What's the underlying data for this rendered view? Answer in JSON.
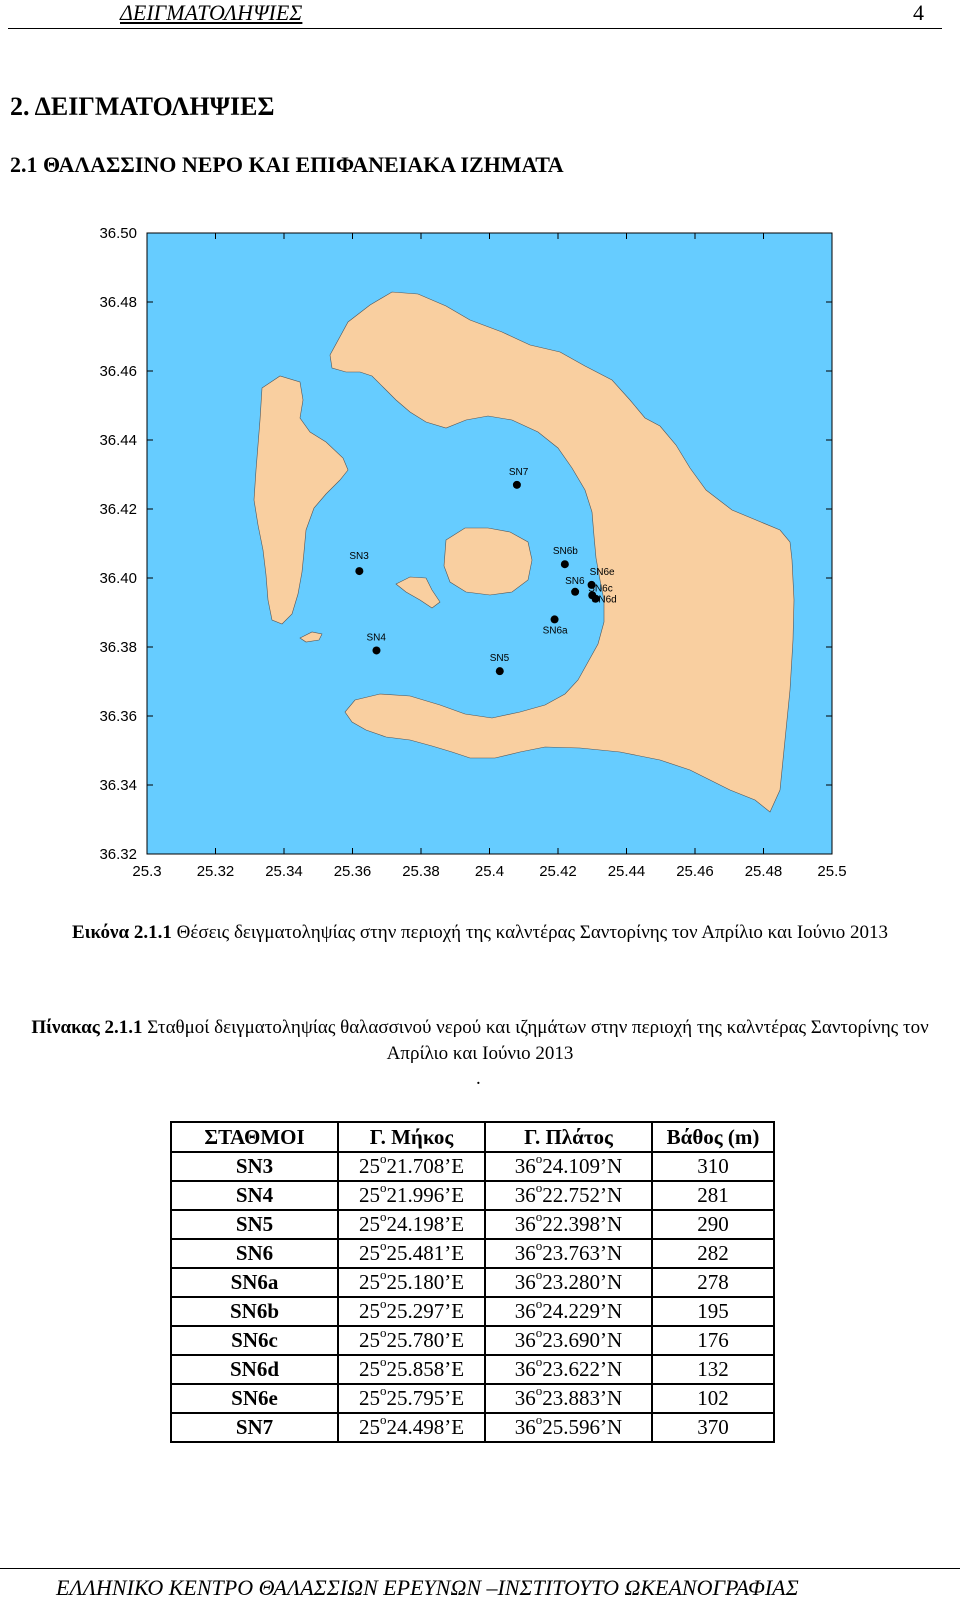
{
  "header": {
    "title": "ΔΕΙΓΜΑΤΟΛΗΨΙΕΣ",
    "page": "4"
  },
  "section_title": "2. ΔΕΙΓΜΑΤΟΛΗΨΙΕΣ",
  "subsection_title": "2.1 ΘΑΛΑΣΣΙΝΟ ΝΕΡΟ ΚΑΙ ΕΠΙΦΑΝΕΙΑΚΑ ΙΖΗΜΑΤΑ",
  "map": {
    "x_ticks": [
      "25.3",
      "25.32",
      "25.34",
      "25.36",
      "25.38",
      "25.4",
      "25.42",
      "25.44",
      "25.46",
      "25.48",
      "25.5"
    ],
    "y_ticks": [
      "36.50",
      "36.48",
      "36.46",
      "36.44",
      "36.42",
      "36.40",
      "36.38",
      "36.36",
      "36.34",
      "36.32"
    ],
    "xlim": [
      25.3,
      25.5
    ],
    "ylim": [
      36.32,
      36.5
    ],
    "sea_color": "#66ccff",
    "land_color": "#f9cfa0",
    "stations": [
      {
        "name": "SN7",
        "lon": 25.408,
        "lat": 36.427
      },
      {
        "name": "SN3",
        "lon": 25.362,
        "lat": 36.402
      },
      {
        "name": "SN6b",
        "lon": 25.422,
        "lat": 36.404
      },
      {
        "name": "SN6",
        "lon": 25.425,
        "lat": 36.396
      },
      {
        "name": "SN6e",
        "lon": 25.4298,
        "lat": 36.398
      },
      {
        "name": "SN6c",
        "lon": 25.43,
        "lat": 36.395
      },
      {
        "name": "SN6d",
        "lon": 25.431,
        "lat": 36.394
      },
      {
        "name": "SN6a",
        "lon": 25.419,
        "lat": 36.388
      },
      {
        "name": "SN4",
        "lon": 25.367,
        "lat": 36.379
      },
      {
        "name": "SN5",
        "lon": 25.403,
        "lat": 36.373
      }
    ]
  },
  "figure_caption": {
    "label": "Εικόνα 2.1.1",
    "text": " Θέσεις δειγματοληψίας στην περιοχή της καλντέρας Σαντορίνης τον Απρίλιο και Ιούνιο 2013"
  },
  "table_caption": {
    "label": "Πίνακας 2.1.1",
    "text": " Σταθμοί δειγματοληψίας θαλασσινού νερού και ιζημάτων στην περιοχή της καλντέρας Σαντορίνης τον Απρίλιο και Ιούνιο 2013"
  },
  "table_caption_dot": ".",
  "table": {
    "headers": [
      "ΣΤΑΘΜΟΙ",
      "Γ. Μήκος",
      "Γ. Πλάτος",
      "Βάθος (m)"
    ],
    "rows": [
      {
        "station": "SN3",
        "lon_deg": "25",
        "lon_min": "21.708’Ε",
        "lat_deg": "36",
        "lat_min": "24.109’Ν",
        "depth": "310"
      },
      {
        "station": "SN4",
        "lon_deg": "25",
        "lon_min": "21.996’Ε",
        "lat_deg": "36",
        "lat_min": "22.752’Ν",
        "depth": "281"
      },
      {
        "station": "SN5",
        "lon_deg": "25",
        "lon_min": "24.198’Ε",
        "lat_deg": "36",
        "lat_min": "22.398’Ν",
        "depth": "290"
      },
      {
        "station": "SN6",
        "lon_deg": "25",
        "lon_min": "25.481’Ε",
        "lat_deg": "36",
        "lat_min": "23.763’Ν",
        "depth": "282"
      },
      {
        "station": "SN6a",
        "lon_deg": "25",
        "lon_min": "25.180’Ε",
        "lat_deg": "36",
        "lat_min": "23.280’Ν",
        "depth": "278"
      },
      {
        "station": "SN6b",
        "lon_deg": "25",
        "lon_min": "25.297’Ε",
        "lat_deg": "36",
        "lat_min": "24.229’Ν",
        "depth": "195"
      },
      {
        "station": "SN6c",
        "lon_deg": "25",
        "lon_min": "25.780’Ε",
        "lat_deg": "36",
        "lat_min": "23.690’Ν",
        "depth": "176"
      },
      {
        "station": "SN6d",
        "lon_deg": "25",
        "lon_min": "25.858’Ε",
        "lat_deg": "36",
        "lat_min": "23.622’Ν",
        "depth": "132"
      },
      {
        "station": "SN6e",
        "lon_deg": "25",
        "lon_min": "25.795’Ε",
        "lat_deg": "36",
        "lat_min": "23.883’Ν",
        "depth": "102"
      },
      {
        "station": "SN7",
        "lon_deg": "25",
        "lon_min": "24.498’Ε",
        "lat_deg": "36",
        "lat_min": "25.596’Ν",
        "depth": "370"
      }
    ],
    "degree_symbol": "o"
  },
  "footer": "ΕΛΛΗΝΙΚΟ ΚΕΝΤΡΟ ΘΑΛΑΣΣΙΩΝ ΕΡΕΥΝΩΝ –ΙΝΣΤΙΤΟΥΤΟ ΩΚΕΑΝΟΓΡΑΦΙΑΣ"
}
